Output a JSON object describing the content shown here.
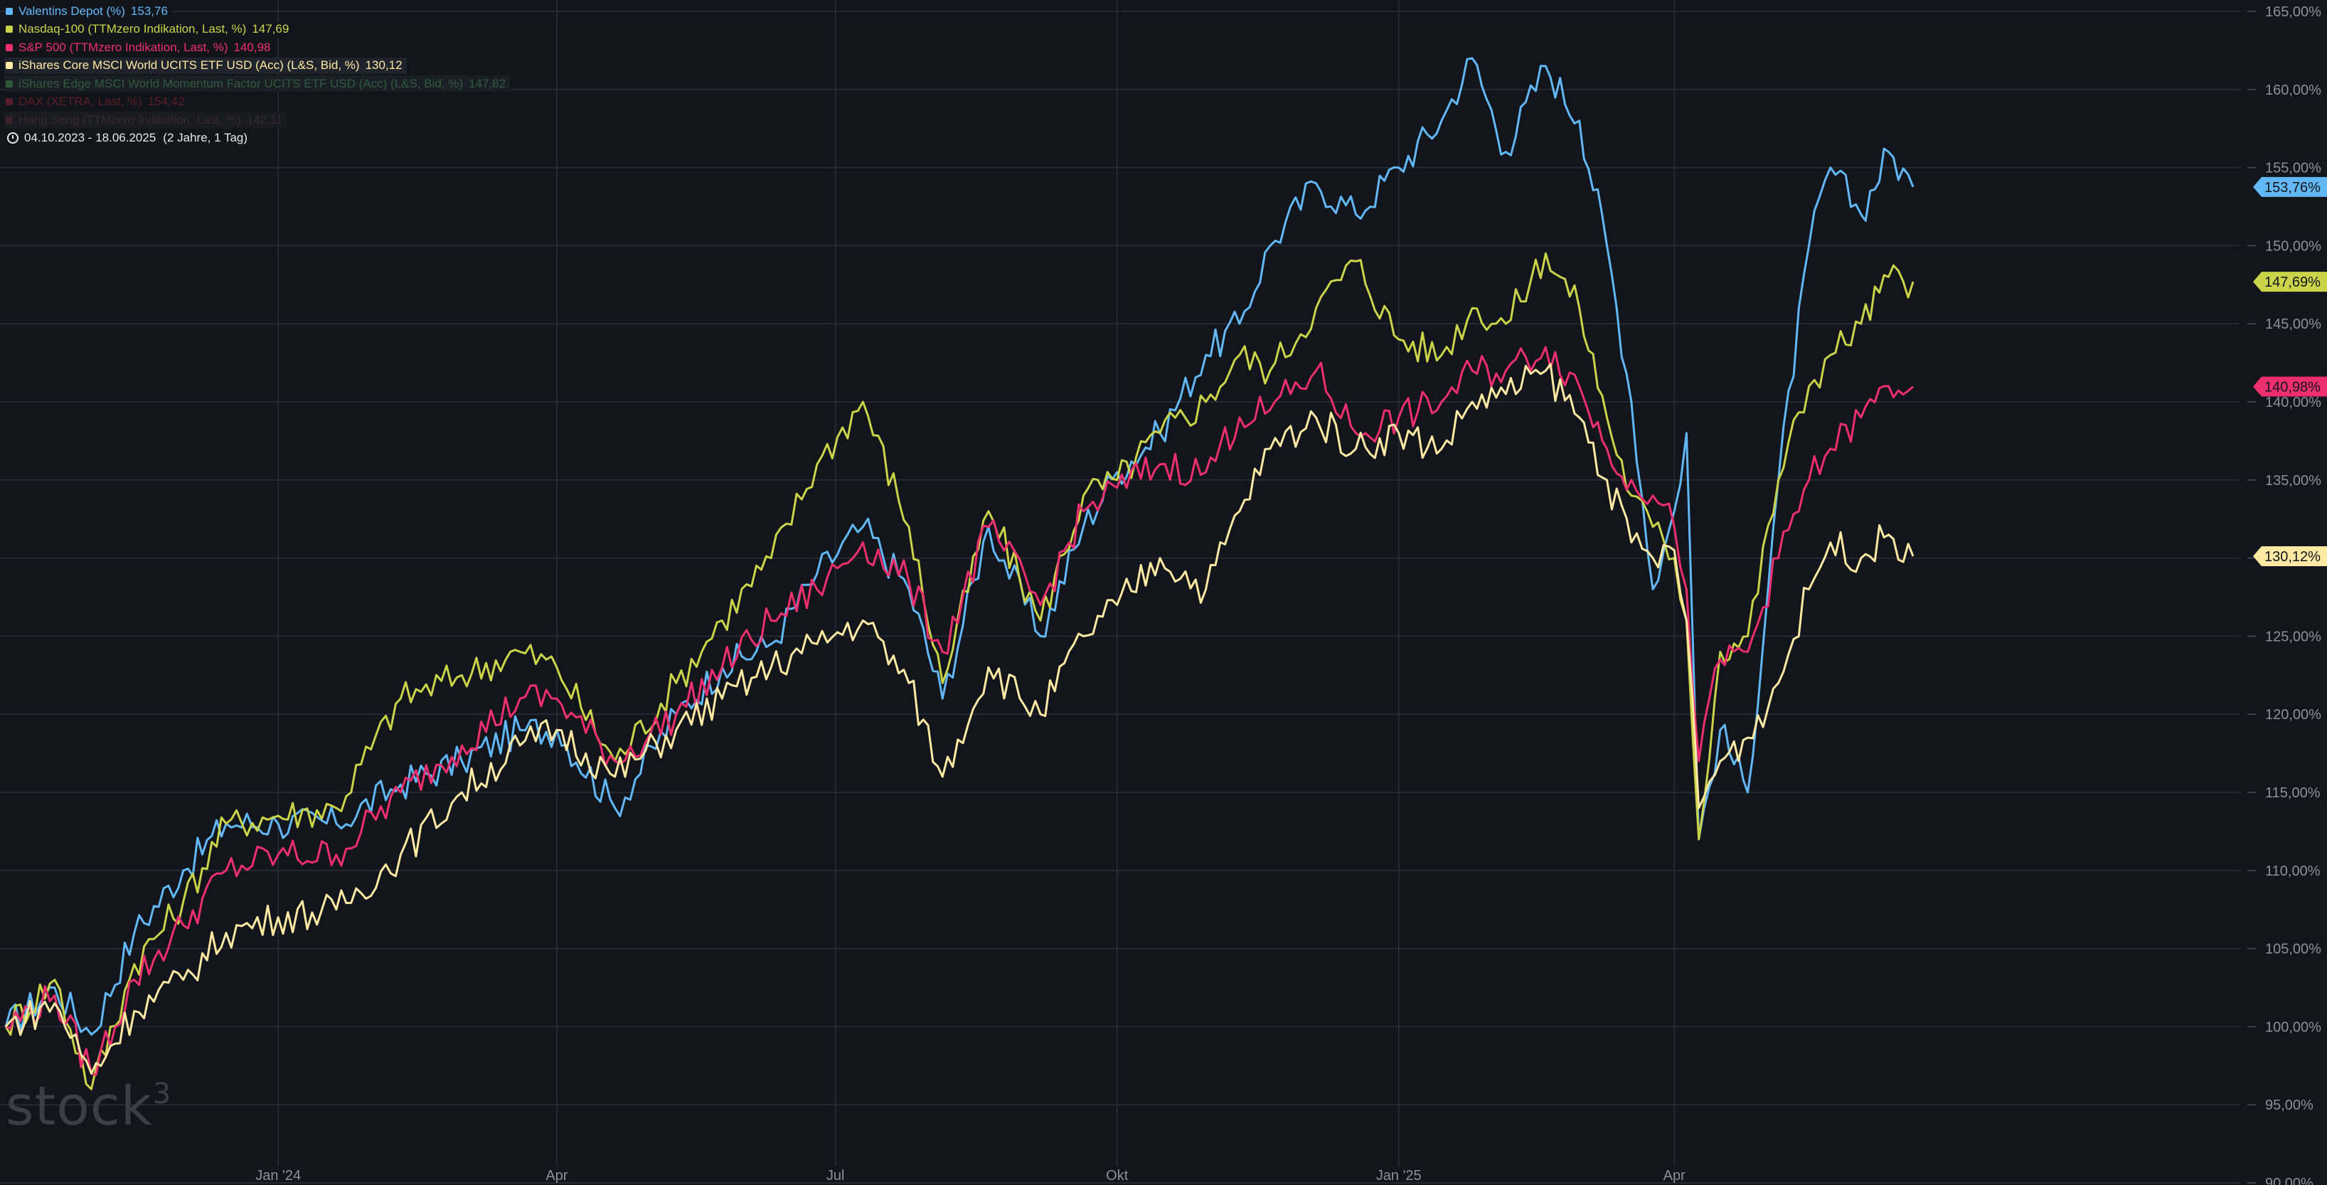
{
  "legend": {
    "items": [
      {
        "label": "Valentins Depot (%)",
        "value": "153,76",
        "color": "#62b8f6"
      },
      {
        "label": "Nasdaq-100 (TTMzero Indikation, Last, %)",
        "value": "147,69",
        "color": "#cbd349"
      },
      {
        "label": "S&P 500 (TTMzero Indikation, Last, %)",
        "value": "140,98",
        "color": "#ee2f6f"
      },
      {
        "label": "iShares Core MSCI World UCITS ETF USD (Acc) (L&S, Bid, %)",
        "value": "130,12",
        "color": "#ffe9a3"
      },
      {
        "label": "iShares Edge MSCI World Momentum Factor UCITS ETF USD (Acc) (L&S, Bid, %)",
        "value": "147,82",
        "color": "#2a5a3a"
      },
      {
        "label": "DAX (XETRA, Last, %)",
        "value": "154,42",
        "color": "#5a1c28"
      },
      {
        "label": "Hang Seng (TTMzero Indikation, Last, %)",
        "value": "142,11",
        "color": "#3a2228"
      }
    ],
    "date_range": "04.10.2023 - 18.06.2025",
    "duration": "(2 Jahre, 1 Tag)"
  },
  "watermark": "stock",
  "watermark_sup": "3",
  "chart_data": {
    "type": "line",
    "x_tick_labels": [
      "Jan '24",
      "Apr",
      "Jul",
      "Okt",
      "Jan '25",
      "Apr"
    ],
    "x_tick_dates": [
      "2024-01-01",
      "2024-04-01",
      "2024-07-01",
      "2024-10-01",
      "2025-01-01",
      "2025-04-01"
    ],
    "y_tick_labels": [
      "90,00%",
      "95,00%",
      "100,00%",
      "105,00%",
      "110,00%",
      "115,00%",
      "120,00%",
      "125,00%",
      "130,00%",
      "135,00%",
      "140,00%",
      "145,00%",
      "150,00%",
      "155,00%",
      "160,00%",
      "165,00%"
    ],
    "ylim": [
      90,
      165
    ],
    "xlim": [
      "2023-10-04",
      "2025-06-18"
    ],
    "grid": true,
    "series": [
      {
        "name": "Valentins Depot (%)",
        "color": "#62b8f6",
        "last_label": "153,76%",
        "points": [
          [
            "2023-10-04",
            100.0
          ],
          [
            "2023-10-20",
            102.5
          ],
          [
            "2023-11-01",
            99.5
          ],
          [
            "2023-11-15",
            106.0
          ],
          [
            "2023-12-01",
            110.0
          ],
          [
            "2023-12-15",
            113.0
          ],
          [
            "2024-01-01",
            113.0
          ],
          [
            "2024-01-20",
            113.0
          ],
          [
            "2024-02-10",
            115.5
          ],
          [
            "2024-03-01",
            117.0
          ],
          [
            "2024-03-20",
            119.0
          ],
          [
            "2024-04-01",
            119.0
          ],
          [
            "2024-04-20",
            114.0
          ],
          [
            "2024-05-10",
            120.0
          ],
          [
            "2024-05-25",
            123.0
          ],
          [
            "2024-06-10",
            124.5
          ],
          [
            "2024-06-25",
            129.0
          ],
          [
            "2024-07-10",
            132.0
          ],
          [
            "2024-07-25",
            128.0
          ],
          [
            "2024-08-05",
            121.0
          ],
          [
            "2024-08-20",
            132.0
          ],
          [
            "2024-09-06",
            125.0
          ],
          [
            "2024-09-20",
            132.0
          ],
          [
            "2024-10-01",
            135.5
          ],
          [
            "2024-10-15",
            138.0
          ],
          [
            "2024-10-30",
            143.0
          ],
          [
            "2024-11-10",
            145.0
          ],
          [
            "2024-11-20",
            150.0
          ],
          [
            "2024-12-05",
            154.0
          ],
          [
            "2024-12-18",
            152.0
          ],
          [
            "2025-01-01",
            155.0
          ],
          [
            "2025-01-15",
            158.0
          ],
          [
            "2025-01-25",
            162.0
          ],
          [
            "2025-02-05",
            156.0
          ],
          [
            "2025-02-18",
            161.5
          ],
          [
            "2025-03-01",
            158.0
          ],
          [
            "2025-03-10",
            150.0
          ],
          [
            "2025-03-18",
            140.0
          ],
          [
            "2025-03-25",
            128.0
          ],
          [
            "2025-04-01",
            133.0
          ],
          [
            "2025-04-05",
            138.0
          ],
          [
            "2025-04-09",
            112.0
          ],
          [
            "2025-04-16",
            119.0
          ],
          [
            "2025-04-25",
            115.0
          ],
          [
            "2025-05-05",
            135.0
          ],
          [
            "2025-05-15",
            150.0
          ],
          [
            "2025-05-22",
            155.0
          ],
          [
            "2025-06-01",
            152.0
          ],
          [
            "2025-06-10",
            156.0
          ],
          [
            "2025-06-18",
            153.76
          ]
        ]
      },
      {
        "name": "Nasdaq-100 (TTMzero Indikation, Last, %)",
        "color": "#cbd349",
        "last_label": "147,69%",
        "points": [
          [
            "2023-10-04",
            100.0
          ],
          [
            "2023-10-20",
            103.0
          ],
          [
            "2023-11-01",
            96.0
          ],
          [
            "2023-11-15",
            104.0
          ],
          [
            "2023-12-01",
            108.0
          ],
          [
            "2023-12-15",
            113.0
          ],
          [
            "2024-01-01",
            113.5
          ],
          [
            "2024-01-20",
            114.0
          ],
          [
            "2024-02-10",
            121.0
          ],
          [
            "2024-03-01",
            122.5
          ],
          [
            "2024-03-20",
            124.0
          ],
          [
            "2024-04-01",
            123.0
          ],
          [
            "2024-04-20",
            117.0
          ],
          [
            "2024-05-10",
            122.0
          ],
          [
            "2024-05-25",
            126.0
          ],
          [
            "2024-06-10",
            130.0
          ],
          [
            "2024-06-25",
            136.0
          ],
          [
            "2024-07-10",
            140.0
          ],
          [
            "2024-07-25",
            132.0
          ],
          [
            "2024-08-05",
            122.0
          ],
          [
            "2024-08-20",
            133.0
          ],
          [
            "2024-09-06",
            126.0
          ],
          [
            "2024-09-20",
            134.0
          ],
          [
            "2024-10-01",
            135.0
          ],
          [
            "2024-10-15",
            138.0
          ],
          [
            "2024-10-30",
            140.0
          ],
          [
            "2024-11-10",
            143.0
          ],
          [
            "2024-11-20",
            142.0
          ],
          [
            "2024-12-05",
            146.0
          ],
          [
            "2024-12-18",
            149.0
          ],
          [
            "2025-01-01",
            144.0
          ],
          [
            "2025-01-15",
            143.0
          ],
          [
            "2025-01-25",
            146.0
          ],
          [
            "2025-02-05",
            145.0
          ],
          [
            "2025-02-18",
            149.5
          ],
          [
            "2025-03-01",
            146.0
          ],
          [
            "2025-03-10",
            139.0
          ],
          [
            "2025-03-18",
            134.0
          ],
          [
            "2025-03-25",
            132.0
          ],
          [
            "2025-04-01",
            130.0
          ],
          [
            "2025-04-05",
            126.0
          ],
          [
            "2025-04-09",
            112.0
          ],
          [
            "2025-04-16",
            124.0
          ],
          [
            "2025-04-25",
            125.0
          ],
          [
            "2025-05-05",
            135.0
          ],
          [
            "2025-05-15",
            141.0
          ],
          [
            "2025-05-22",
            143.0
          ],
          [
            "2025-06-01",
            145.0
          ],
          [
            "2025-06-10",
            148.0
          ],
          [
            "2025-06-18",
            147.69
          ]
        ]
      },
      {
        "name": "S&P 500 (TTMzero Indikation, Last, %)",
        "color": "#ee2f6f",
        "last_label": "140,98%",
        "points": [
          [
            "2023-10-04",
            100.0
          ],
          [
            "2023-10-20",
            102.0
          ],
          [
            "2023-11-01",
            97.0
          ],
          [
            "2023-11-15",
            103.0
          ],
          [
            "2023-12-01",
            106.5
          ],
          [
            "2023-12-15",
            110.0
          ],
          [
            "2024-01-01",
            111.0
          ],
          [
            "2024-01-20",
            111.0
          ],
          [
            "2024-02-10",
            115.0
          ],
          [
            "2024-03-01",
            118.0
          ],
          [
            "2024-03-20",
            121.0
          ],
          [
            "2024-04-01",
            121.0
          ],
          [
            "2024-04-20",
            117.0
          ],
          [
            "2024-05-10",
            120.0
          ],
          [
            "2024-05-25",
            123.0
          ],
          [
            "2024-06-10",
            126.0
          ],
          [
            "2024-06-25",
            128.0
          ],
          [
            "2024-07-10",
            131.0
          ],
          [
            "2024-07-25",
            128.5
          ],
          [
            "2024-08-05",
            124.0
          ],
          [
            "2024-08-20",
            132.0
          ],
          [
            "2024-09-06",
            127.0
          ],
          [
            "2024-09-20",
            133.0
          ],
          [
            "2024-10-01",
            134.5
          ],
          [
            "2024-10-15",
            136.0
          ],
          [
            "2024-10-30",
            135.5
          ],
          [
            "2024-11-10",
            139.0
          ],
          [
            "2024-11-20",
            139.5
          ],
          [
            "2024-12-05",
            142.0
          ],
          [
            "2024-12-18",
            138.0
          ],
          [
            "2025-01-01",
            139.0
          ],
          [
            "2025-01-15",
            140.0
          ],
          [
            "2025-01-25",
            142.0
          ],
          [
            "2025-02-05",
            142.0
          ],
          [
            "2025-02-18",
            143.5
          ],
          [
            "2025-03-01",
            141.0
          ],
          [
            "2025-03-10",
            137.0
          ],
          [
            "2025-03-18",
            135.0
          ],
          [
            "2025-03-25",
            134.0
          ],
          [
            "2025-04-01",
            132.0
          ],
          [
            "2025-04-05",
            128.0
          ],
          [
            "2025-04-09",
            117.0
          ],
          [
            "2025-04-16",
            123.5
          ],
          [
            "2025-04-25",
            124.0
          ],
          [
            "2025-05-05",
            130.0
          ],
          [
            "2025-05-15",
            135.0
          ],
          [
            "2025-05-22",
            137.0
          ],
          [
            "2025-06-01",
            139.0
          ],
          [
            "2025-06-10",
            141.0
          ],
          [
            "2025-06-18",
            140.98
          ]
        ]
      },
      {
        "name": "iShares Core MSCI World UCITS ETF USD (Acc) (L&S, Bid, %)",
        "color": "#ffe9a3",
        "last_label": "130,12%",
        "points": [
          [
            "2023-10-04",
            100.0
          ],
          [
            "2023-10-20",
            101.5
          ],
          [
            "2023-11-01",
            97.0
          ],
          [
            "2023-11-15",
            101.0
          ],
          [
            "2023-12-01",
            103.0
          ],
          [
            "2023-12-15",
            106.0
          ],
          [
            "2024-01-01",
            107.0
          ],
          [
            "2024-01-20",
            107.5
          ],
          [
            "2024-02-10",
            111.0
          ],
          [
            "2024-03-01",
            115.0
          ],
          [
            "2024-03-20",
            118.0
          ],
          [
            "2024-04-01",
            119.0
          ],
          [
            "2024-04-20",
            116.0
          ],
          [
            "2024-05-10",
            119.0
          ],
          [
            "2024-05-25",
            121.0
          ],
          [
            "2024-06-10",
            123.0
          ],
          [
            "2024-06-25",
            124.5
          ],
          [
            "2024-07-10",
            126.0
          ],
          [
            "2024-07-25",
            122.0
          ],
          [
            "2024-08-05",
            116.0
          ],
          [
            "2024-08-20",
            123.0
          ],
          [
            "2024-09-06",
            120.0
          ],
          [
            "2024-09-20",
            125.0
          ],
          [
            "2024-10-01",
            127.0
          ],
          [
            "2024-10-15",
            130.0
          ],
          [
            "2024-10-30",
            128.0
          ],
          [
            "2024-11-10",
            133.0
          ],
          [
            "2024-11-20",
            137.0
          ],
          [
            "2024-12-05",
            139.0
          ],
          [
            "2024-12-18",
            137.0
          ],
          [
            "2025-01-01",
            138.0
          ],
          [
            "2025-01-15",
            137.0
          ],
          [
            "2025-01-25",
            140.0
          ],
          [
            "2025-02-05",
            140.5
          ],
          [
            "2025-02-18",
            142.0
          ],
          [
            "2025-03-01",
            139.0
          ],
          [
            "2025-03-10",
            135.0
          ],
          [
            "2025-03-18",
            131.0
          ],
          [
            "2025-03-25",
            130.0
          ],
          [
            "2025-04-01",
            130.5
          ],
          [
            "2025-04-05",
            126.0
          ],
          [
            "2025-04-09",
            114.0
          ],
          [
            "2025-04-16",
            117.0
          ],
          [
            "2025-04-25",
            118.5
          ],
          [
            "2025-05-05",
            122.0
          ],
          [
            "2025-05-15",
            128.0
          ],
          [
            "2025-05-22",
            131.0
          ],
          [
            "2025-06-01",
            130.0
          ],
          [
            "2025-06-10",
            131.5
          ],
          [
            "2025-06-18",
            130.12
          ]
        ]
      }
    ]
  }
}
